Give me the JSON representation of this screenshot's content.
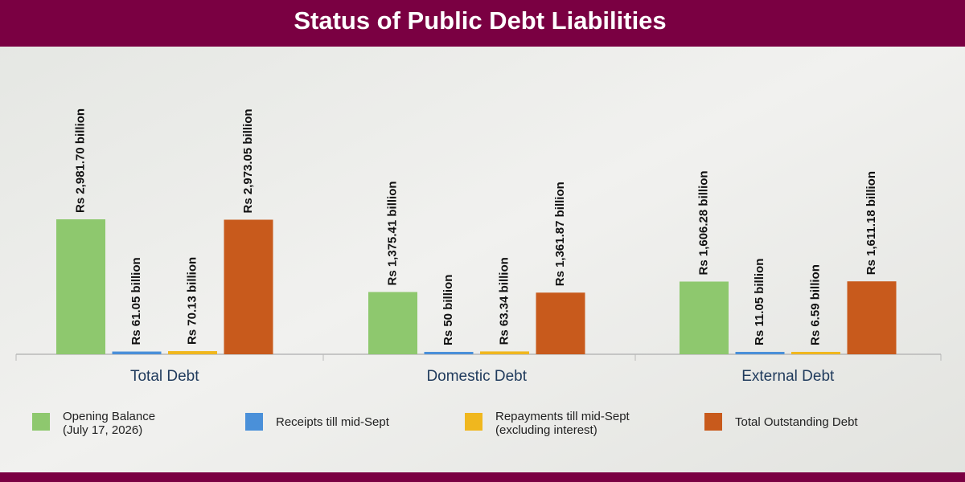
{
  "chart_data": {
    "type": "bar",
    "title": "Status of Public Debt Liabilities",
    "categories": [
      "Total Debt",
      "Domestic Debt",
      "External Debt"
    ],
    "series": [
      {
        "name": "Opening Balance (July 17, 2026)",
        "color": "#8ec86e",
        "values": [
          2981.7,
          1375.41,
          1606.28
        ],
        "value_labels": [
          "Rs 2,981.70 billion",
          "Rs 1,375.41 billion",
          "Rs 1,606.28 billion"
        ]
      },
      {
        "name": "Receipts till mid-Sept",
        "color": "#4a90d9",
        "values": [
          61.05,
          50,
          11.05
        ],
        "value_labels": [
          "Rs 61.05 billion",
          "Rs 50 billion",
          "Rs 11.05 billion"
        ]
      },
      {
        "name": "Repayments till mid-Sept (excluding interest)",
        "color": "#f0b71e",
        "values": [
          70.13,
          63.34,
          6.59
        ],
        "value_labels": [
          "Rs 70.13 billion",
          "Rs 63.34 billion",
          "Rs 6.59 billion"
        ]
      },
      {
        "name": "Total Outstanding Debt",
        "color": "#c85a1c",
        "values": [
          2973.05,
          1361.87,
          1611.18
        ],
        "value_labels": [
          "Rs 2,973.05 billion",
          "Rs 1,361.87 billion",
          "Rs 1,611.18 billion"
        ]
      }
    ]
  }
}
